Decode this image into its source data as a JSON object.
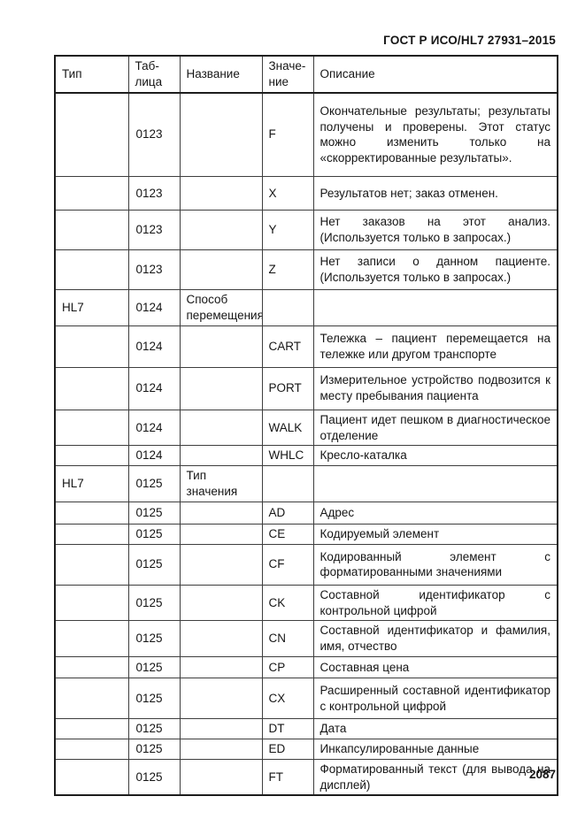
{
  "page": {
    "running_header": "ГОСТ Р ИСО/HL7 27931–2015",
    "page_number": "2087"
  },
  "table": {
    "columns": [
      {
        "key": "tip",
        "label": "Тип"
      },
      {
        "key": "tab",
        "label": "Таб-\nлица"
      },
      {
        "key": "name",
        "label": "Название"
      },
      {
        "key": "value",
        "label": "Значе-\nние"
      },
      {
        "key": "desc",
        "label": "Описание"
      }
    ],
    "rows": [
      {
        "tip": "",
        "tab": "0123",
        "name": "",
        "value": "F",
        "desc": "Окончательные результаты; результаты получены и проверены. Этот статус можно изменить только на «скорректированные результаты»."
      },
      {
        "tip": "",
        "tab": "0123",
        "name": "",
        "value": "X",
        "desc": "Результатов нет; заказ отменен."
      },
      {
        "tip": "",
        "tab": "0123",
        "name": "",
        "value": "Y",
        "desc": "Нет заказов на этот анализ. (Используется только в запросах.)"
      },
      {
        "tip": "",
        "tab": "0123",
        "name": "",
        "value": "Z",
        "desc": "Нет записи о данном пациенте. (Используется только в запросах.)"
      },
      {
        "tip": "HL7",
        "tab": "0124",
        "name": "Способ перемещения",
        "value": "",
        "desc": ""
      },
      {
        "tip": "",
        "tab": "0124",
        "name": "",
        "value": "CART",
        "desc": "Тележка – пациент перемещается на тележке или другом транспорте"
      },
      {
        "tip": "",
        "tab": "0124",
        "name": "",
        "value": "PORT",
        "desc": "Измерительное устройство подвозится к месту пребывания пациента"
      },
      {
        "tip": "",
        "tab": "0124",
        "name": "",
        "value": "WALK",
        "desc": "Пациент идет пешком в диагностическое отделение"
      },
      {
        "tip": "",
        "tab": "0124",
        "name": "",
        "value": "WHLC",
        "desc": "Кресло-каталка"
      },
      {
        "tip": "HL7",
        "tab": "0125",
        "name": "Тип значения",
        "value": "",
        "desc": ""
      },
      {
        "tip": "",
        "tab": "0125",
        "name": "",
        "value": "AD",
        "desc": "Адрес"
      },
      {
        "tip": "",
        "tab": "0125",
        "name": "",
        "value": "CE",
        "desc": "Кодируемый элемент"
      },
      {
        "tip": "",
        "tab": "0125",
        "name": "",
        "value": "CF",
        "desc": "Кодированный элемент с форматированными значениями"
      },
      {
        "tip": "",
        "tab": "0125",
        "name": "",
        "value": "CK",
        "desc": "Составной идентификатор с контрольной цифрой"
      },
      {
        "tip": "",
        "tab": "0125",
        "name": "",
        "value": "CN",
        "desc": "Составной идентификатор и фамилия, имя, отчество"
      },
      {
        "tip": "",
        "tab": "0125",
        "name": "",
        "value": "CP",
        "desc": "Составная цена"
      },
      {
        "tip": "",
        "tab": "0125",
        "name": "",
        "value": "CX",
        "desc": "Расширенный составной идентификатор с контрольной цифрой"
      },
      {
        "tip": "",
        "tab": "0125",
        "name": "",
        "value": "DT",
        "desc": "Дата"
      },
      {
        "tip": "",
        "tab": "0125",
        "name": "",
        "value": "ED",
        "desc": "Инкапсулированные данные"
      },
      {
        "tip": "",
        "tab": "0125",
        "name": "",
        "value": "FT",
        "desc": "Форматированный текст (для вывода на дисплей)"
      }
    ]
  }
}
